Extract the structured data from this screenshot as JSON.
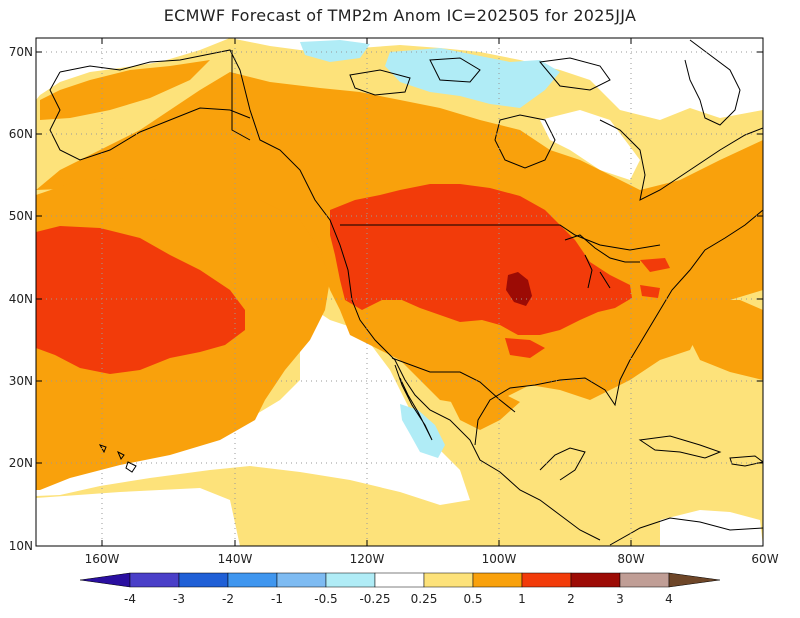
{
  "title": "ECMWF Forecast of TMP2m Anom IC=202505 for 2025JJA",
  "axes": {
    "lat_labels": [
      "70N",
      "60N",
      "50N",
      "40N",
      "30N",
      "20N",
      "10N"
    ],
    "lon_labels": [
      "160W",
      "140W",
      "120W",
      "100W",
      "80W",
      "60W"
    ]
  },
  "legend": {
    "labels": [
      "-4",
      "-3",
      "-2",
      "-1",
      "-0.5",
      "-0.25",
      "0.25",
      "0.5",
      "1",
      "2",
      "3",
      "4"
    ],
    "colors": {
      "lt_m4": "#2a0fa0",
      "m4_m3": "#4a3fc8",
      "m3_m2": "#1f5fd6",
      "m2_m1": "#3f96ef",
      "m1_m05": "#7ebbf2",
      "m05_m025": "#b0ecf6",
      "m025_025": "#ffffff",
      "p025_05": "#fde27a",
      "p05_1": "#f9a10c",
      "p1_2": "#f23b0a",
      "p2_3": "#9c0b05",
      "p3_4": "#c09e96",
      "gt_4": "#6e4628"
    }
  },
  "map_colors": {
    "ocean_default": "#fde27a",
    "orange": "#f9a10c",
    "red": "#f23b0a",
    "dark_red": "#9c0b05",
    "light_blue": "#b0ecf6",
    "white": "#ffffff",
    "coast": "#000000",
    "grid": "#999999"
  }
}
